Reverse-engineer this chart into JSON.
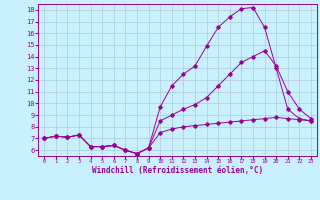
{
  "x": [
    0,
    1,
    2,
    3,
    4,
    5,
    6,
    7,
    8,
    9,
    10,
    11,
    12,
    13,
    14,
    15,
    16,
    17,
    18,
    19,
    20,
    21,
    22,
    23
  ],
  "line1": [
    7.0,
    7.2,
    7.1,
    7.3,
    6.3,
    6.3,
    6.4,
    6.0,
    5.7,
    6.2,
    9.7,
    11.5,
    12.5,
    13.2,
    14.9,
    16.5,
    17.4,
    18.1,
    18.2,
    16.5,
    13.0,
    9.5,
    8.7,
    8.5
  ],
  "line2": [
    7.0,
    7.2,
    7.1,
    7.3,
    6.3,
    6.3,
    6.4,
    6.0,
    5.7,
    6.2,
    8.5,
    9.0,
    9.5,
    9.9,
    10.5,
    11.5,
    12.5,
    13.5,
    14.0,
    14.5,
    13.2,
    11.0,
    9.5,
    8.7
  ],
  "line3": [
    7.0,
    7.2,
    7.1,
    7.3,
    6.3,
    6.3,
    6.4,
    6.0,
    5.7,
    6.2,
    7.5,
    7.8,
    8.0,
    8.1,
    8.2,
    8.3,
    8.4,
    8.5,
    8.6,
    8.7,
    8.8,
    8.7,
    8.6,
    8.5
  ],
  "color": "#990099",
  "bg_color": "#c8f0ff",
  "grid_color": "#b0c8d8",
  "xlabel": "Windchill (Refroidissement éolien,°C)",
  "ylim": [
    5.5,
    18.5
  ],
  "xlim": [
    -0.5,
    23.5
  ],
  "yticks": [
    6,
    7,
    8,
    9,
    10,
    11,
    12,
    13,
    14,
    15,
    16,
    17,
    18
  ],
  "xticks": [
    0,
    1,
    2,
    3,
    4,
    5,
    6,
    7,
    8,
    9,
    10,
    11,
    12,
    13,
    14,
    15,
    16,
    17,
    18,
    19,
    20,
    21,
    22,
    23
  ]
}
